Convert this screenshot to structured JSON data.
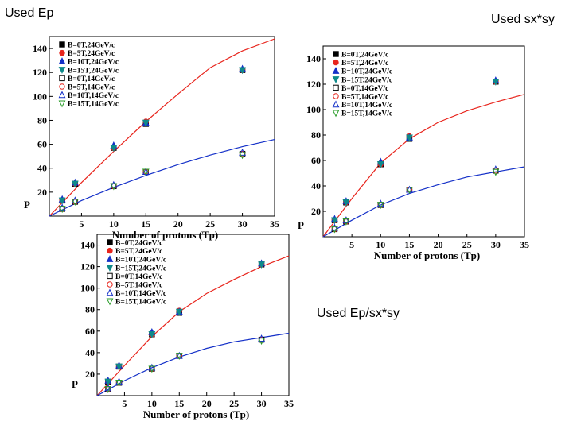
{
  "captions": [
    "Used Ep",
    "Used sx*sy",
    "Used Ep/sx*sy"
  ],
  "chart_data": [
    {
      "type": "scatter",
      "xlabel": "Number of protons (Tp)",
      "ylabel": "P",
      "xlim": [
        0,
        35
      ],
      "ylim": [
        0,
        150
      ],
      "xticks": [
        5,
        10,
        15,
        20,
        25,
        30,
        35
      ],
      "yticks": [
        20,
        40,
        60,
        80,
        100,
        120,
        140
      ],
      "series": [
        {
          "name": "B=0T,24GeV/c",
          "marker": "square-filled",
          "color": "#000000",
          "x": [
            2,
            4,
            10,
            15,
            30
          ],
          "y": [
            13,
            27,
            57,
            77,
            122
          ]
        },
        {
          "name": "B=5T,24GeV/c",
          "marker": "circle-filled",
          "color": "#e8251d",
          "x": [
            2,
            4,
            10,
            15,
            30
          ],
          "y": [
            13,
            27,
            57,
            79,
            122
          ]
        },
        {
          "name": "B=10T,24GeV/c",
          "marker": "triangle-up-filled",
          "color": "#1430c8",
          "x": [
            2,
            4,
            10,
            15,
            30
          ],
          "y": [
            14,
            28,
            59,
            78,
            123
          ]
        },
        {
          "name": "B=15T,24GeV/c",
          "marker": "triangle-down-filled",
          "color": "#0e8a8a",
          "x": [
            2,
            4,
            10,
            15,
            30
          ],
          "y": [
            13,
            27,
            57,
            78,
            122
          ]
        },
        {
          "name": "B=0T,14GeV/c",
          "marker": "square-open",
          "color": "#000000",
          "x": [
            2,
            4,
            10,
            15,
            30
          ],
          "y": [
            6,
            12,
            25,
            37,
            52
          ]
        },
        {
          "name": "B=5T,14GeV/c",
          "marker": "circle-open",
          "color": "#e8251d",
          "x": [
            2,
            4,
            10,
            15,
            30
          ],
          "y": [
            6,
            12,
            25,
            37,
            52
          ]
        },
        {
          "name": "B=10T,14GeV/c",
          "marker": "triangle-up-open",
          "color": "#1430c8",
          "x": [
            2,
            4,
            10,
            15,
            30
          ],
          "y": [
            7,
            13,
            26,
            37,
            53
          ]
        },
        {
          "name": "B=15T,14GeV/c",
          "marker": "triangle-down-open",
          "color": "#2a9d2a",
          "x": [
            2,
            4,
            10,
            15,
            30
          ],
          "y": [
            6,
            12,
            25,
            37,
            51
          ]
        }
      ],
      "fit_lines": [
        {
          "color": "#e8251d",
          "x": [
            0,
            5,
            10,
            15,
            20,
            25,
            30,
            35
          ],
          "y": [
            0,
            28,
            54,
            79,
            102,
            124,
            138,
            148
          ]
        },
        {
          "color": "#1430c8",
          "x": [
            0,
            5,
            10,
            15,
            20,
            25,
            30,
            35
          ],
          "y": [
            0,
            13,
            24,
            34,
            43,
            51,
            58,
            64
          ]
        }
      ]
    },
    {
      "type": "scatter",
      "xlabel": "Number of protons (Tp)",
      "ylabel": "P",
      "xlim": [
        0,
        35
      ],
      "ylim": [
        0,
        150
      ],
      "xticks": [
        5,
        10,
        15,
        20,
        25,
        30,
        35
      ],
      "yticks": [
        20,
        40,
        60,
        80,
        100,
        120,
        140
      ],
      "series": [
        {
          "name": "B=0T,24GeV/c",
          "marker": "square-filled",
          "color": "#000000",
          "x": [
            2,
            4,
            10,
            15,
            30
          ],
          "y": [
            13,
            27,
            57,
            77,
            122
          ]
        },
        {
          "name": "B=5T,24GeV/c",
          "marker": "circle-filled",
          "color": "#e8251d",
          "x": [
            2,
            4,
            10,
            15,
            30
          ],
          "y": [
            13,
            27,
            57,
            79,
            122
          ]
        },
        {
          "name": "B=10T,24GeV/c",
          "marker": "triangle-up-filled",
          "color": "#1430c8",
          "x": [
            2,
            4,
            10,
            15,
            30
          ],
          "y": [
            14,
            28,
            59,
            78,
            123
          ]
        },
        {
          "name": "B=15T,24GeV/c",
          "marker": "triangle-down-filled",
          "color": "#0e8a8a",
          "x": [
            2,
            4,
            10,
            15,
            30
          ],
          "y": [
            13,
            27,
            57,
            78,
            122
          ]
        },
        {
          "name": "B=0T,14GeV/c",
          "marker": "square-open",
          "color": "#000000",
          "x": [
            2,
            4,
            10,
            15,
            30
          ],
          "y": [
            6,
            12,
            25,
            37,
            52
          ]
        },
        {
          "name": "B=5T,14GeV/c",
          "marker": "circle-open",
          "color": "#e8251d",
          "x": [
            2,
            4,
            10,
            15,
            30
          ],
          "y": [
            6,
            12,
            25,
            37,
            52
          ]
        },
        {
          "name": "B=10T,14GeV/c",
          "marker": "triangle-up-open",
          "color": "#1430c8",
          "x": [
            2,
            4,
            10,
            15,
            30
          ],
          "y": [
            7,
            13,
            26,
            37,
            53
          ]
        },
        {
          "name": "B=15T,14GeV/c",
          "marker": "triangle-down-open",
          "color": "#2a9d2a",
          "x": [
            2,
            4,
            10,
            15,
            30
          ],
          "y": [
            6,
            12,
            25,
            37,
            51
          ]
        }
      ],
      "fit_lines": [
        {
          "color": "#e8251d",
          "x": [
            0,
            5,
            10,
            15,
            20,
            25,
            30,
            35
          ],
          "y": [
            0,
            30,
            58,
            77,
            90,
            99,
            106,
            112
          ]
        },
        {
          "color": "#1430c8",
          "x": [
            0,
            5,
            10,
            15,
            20,
            25,
            30,
            35
          ],
          "y": [
            0,
            13,
            25,
            34,
            41,
            47,
            51,
            55
          ]
        }
      ]
    },
    {
      "type": "scatter",
      "xlabel": "Number of protons (Tp)",
      "ylabel": "P",
      "xlim": [
        0,
        35
      ],
      "ylim": [
        0,
        150
      ],
      "xticks": [
        5,
        10,
        15,
        20,
        25,
        30,
        35
      ],
      "yticks": [
        20,
        40,
        60,
        80,
        100,
        120,
        140
      ],
      "series": [
        {
          "name": "B=0T,24GeV/c",
          "marker": "square-filled",
          "color": "#000000",
          "x": [
            2,
            4,
            10,
            15,
            30
          ],
          "y": [
            13,
            27,
            57,
            77,
            122
          ]
        },
        {
          "name": "B=5T,24GeV/c",
          "marker": "circle-filled",
          "color": "#e8251d",
          "x": [
            2,
            4,
            10,
            15,
            30
          ],
          "y": [
            13,
            27,
            57,
            79,
            122
          ]
        },
        {
          "name": "B=10T,24GeV/c",
          "marker": "triangle-up-filled",
          "color": "#1430c8",
          "x": [
            2,
            4,
            10,
            15,
            30
          ],
          "y": [
            14,
            28,
            59,
            78,
            123
          ]
        },
        {
          "name": "B=15T,24GeV/c",
          "marker": "triangle-down-filled",
          "color": "#0e8a8a",
          "x": [
            2,
            4,
            10,
            15,
            30
          ],
          "y": [
            13,
            27,
            57,
            78,
            122
          ]
        },
        {
          "name": "B=0T,14GeV/c",
          "marker": "square-open",
          "color": "#000000",
          "x": [
            2,
            4,
            10,
            15,
            30
          ],
          "y": [
            6,
            12,
            25,
            37,
            52
          ]
        },
        {
          "name": "B=5T,14GeV/c",
          "marker": "circle-open",
          "color": "#e8251d",
          "x": [
            2,
            4,
            10,
            15,
            30
          ],
          "y": [
            6,
            12,
            25,
            37,
            52
          ]
        },
        {
          "name": "B=10T,14GeV/c",
          "marker": "triangle-up-open",
          "color": "#1430c8",
          "x": [
            2,
            4,
            10,
            15,
            30
          ],
          "y": [
            7,
            13,
            26,
            37,
            53
          ]
        },
        {
          "name": "B=15T,14GeV/c",
          "marker": "triangle-down-open",
          "color": "#2a9d2a",
          "x": [
            2,
            4,
            10,
            15,
            30
          ],
          "y": [
            6,
            12,
            25,
            37,
            51
          ]
        }
      ],
      "fit_lines": [
        {
          "color": "#e8251d",
          "x": [
            0,
            5,
            10,
            15,
            20,
            25,
            30,
            35
          ],
          "y": [
            0,
            28,
            55,
            78,
            95,
            108,
            120,
            130
          ]
        },
        {
          "color": "#1430c8",
          "x": [
            0,
            5,
            10,
            15,
            20,
            25,
            30,
            35
          ],
          "y": [
            0,
            14,
            26,
            36,
            44,
            50,
            54,
            58
          ]
        }
      ]
    }
  ]
}
